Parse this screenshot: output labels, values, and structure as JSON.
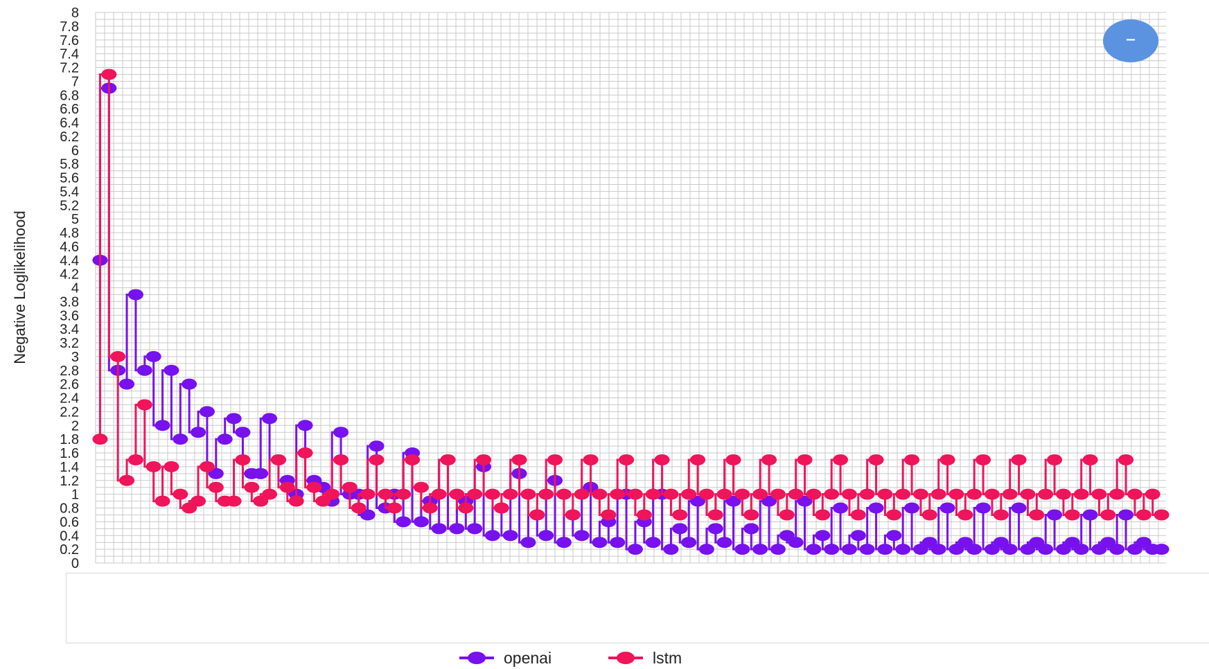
{
  "chart_data": {
    "type": "line",
    "ylabel": "Negative Loglikelihood",
    "xlabel": "",
    "ylim": [
      0,
      8
    ],
    "yticks": [
      "0",
      "0.2",
      "0.4",
      "0.6",
      "0.8",
      "1",
      "1.2",
      "1.4",
      "1.6",
      "1.8",
      "2",
      "2.2",
      "2.4",
      "2.6",
      "2.8",
      "3",
      "3.2",
      "3.4",
      "3.6",
      "3.8",
      "4",
      "4.2",
      "4.4",
      "4.6",
      "4.8",
      "5",
      "5.2",
      "5.4",
      "5.6",
      "5.8",
      "6",
      "6.2",
      "6.4",
      "6.6",
      "6.8",
      "7",
      "7.2",
      "7.4",
      "7.6",
      "7.8",
      "8"
    ],
    "grid": true,
    "legend_position": "bottom",
    "x": [
      0,
      1,
      2,
      3,
      4,
      5,
      6,
      7,
      8,
      9,
      10,
      11,
      12,
      13,
      14,
      15,
      16,
      17,
      18,
      19,
      20,
      21,
      22,
      23,
      24,
      25,
      26,
      27,
      28,
      29,
      30,
      31,
      32,
      33,
      34,
      35,
      36,
      37,
      38,
      39,
      40,
      41,
      42,
      43,
      44,
      45,
      46,
      47,
      48,
      49,
      50,
      51,
      52,
      53,
      54,
      55,
      56,
      57,
      58,
      59,
      60,
      61,
      62,
      63,
      64,
      65,
      66,
      67,
      68,
      69,
      70,
      71,
      72,
      73,
      74,
      75,
      76,
      77,
      78,
      79,
      80,
      81,
      82,
      83,
      84,
      85,
      86,
      87,
      88,
      89,
      90,
      91,
      92,
      93,
      94,
      95,
      96,
      97,
      98,
      99,
      100,
      101,
      102,
      103,
      104,
      105,
      106,
      107,
      108,
      109,
      110,
      111,
      112,
      113,
      114,
      115,
      116,
      117,
      118,
      119
    ],
    "series": [
      {
        "name": "openai",
        "color": "#7711ee",
        "values": [
          4.4,
          6.9,
          2.8,
          2.6,
          3.9,
          2.8,
          3.0,
          2.0,
          2.8,
          1.8,
          2.6,
          1.9,
          2.2,
          1.3,
          1.8,
          2.1,
          1.9,
          1.3,
          1.3,
          2.1,
          1.5,
          1.2,
          1.0,
          2.0,
          1.2,
          1.1,
          0.9,
          1.9,
          1.0,
          1.0,
          0.7,
          1.7,
          0.8,
          1.0,
          0.6,
          1.6,
          0.6,
          0.9,
          0.5,
          1.5,
          0.5,
          0.9,
          0.5,
          1.4,
          0.4,
          0.8,
          0.4,
          1.3,
          0.3,
          0.7,
          0.4,
          1.2,
          0.3,
          0.7,
          0.4,
          1.1,
          0.3,
          0.6,
          0.3,
          1.0,
          0.2,
          0.6,
          0.3,
          1.0,
          0.2,
          0.5,
          0.3,
          0.9,
          0.2,
          0.5,
          0.3,
          0.9,
          0.2,
          0.5,
          0.2,
          0.9,
          0.2,
          0.4,
          0.3,
          0.9,
          0.2,
          0.4,
          0.2,
          0.8,
          0.2,
          0.4,
          0.2,
          0.8,
          0.2,
          0.4,
          0.2,
          0.8,
          0.2,
          0.3,
          0.2,
          0.8,
          0.2,
          0.3,
          0.2,
          0.8,
          0.2,
          0.3,
          0.2,
          0.8,
          0.2,
          0.3,
          0.2,
          0.7,
          0.2,
          0.3,
          0.2,
          0.7,
          0.2,
          0.3,
          0.2,
          0.7,
          0.2,
          0.3,
          0.2,
          0.2
        ]
      },
      {
        "name": "lstm",
        "color": "#f0145a",
        "values": [
          1.8,
          7.1,
          3.0,
          1.2,
          1.5,
          2.3,
          1.4,
          0.9,
          1.4,
          1.0,
          0.8,
          0.9,
          1.4,
          1.1,
          0.9,
          0.9,
          1.5,
          1.1,
          0.9,
          1.0,
          1.5,
          1.1,
          0.9,
          1.6,
          1.1,
          0.9,
          1.0,
          1.5,
          1.1,
          0.8,
          1.0,
          1.5,
          1.0,
          0.8,
          1.0,
          1.5,
          1.1,
          0.8,
          1.0,
          1.5,
          1.0,
          0.8,
          1.0,
          1.5,
          1.0,
          0.8,
          1.0,
          1.5,
          1.0,
          0.7,
          1.0,
          1.5,
          1.0,
          0.7,
          1.0,
          1.5,
          1.0,
          0.7,
          1.0,
          1.5,
          1.0,
          0.7,
          1.0,
          1.5,
          1.0,
          0.7,
          1.0,
          1.5,
          1.0,
          0.7,
          1.0,
          1.5,
          1.0,
          0.7,
          1.0,
          1.5,
          1.0,
          0.7,
          1.0,
          1.5,
          1.0,
          0.7,
          1.0,
          1.5,
          1.0,
          0.7,
          1.0,
          1.5,
          1.0,
          0.7,
          1.0,
          1.5,
          1.0,
          0.7,
          1.0,
          1.5,
          1.0,
          0.7,
          1.0,
          1.5,
          1.0,
          0.7,
          1.0,
          1.5,
          1.0,
          0.7,
          1.0,
          1.5,
          1.0,
          0.7,
          1.0,
          1.5,
          1.0,
          0.7,
          1.0,
          1.5,
          1.0,
          0.7,
          1.0,
          0.7
        ]
      }
    ]
  },
  "zoom_button": {
    "icon": "minus-icon",
    "label": "–",
    "color": "#5b93e0"
  }
}
